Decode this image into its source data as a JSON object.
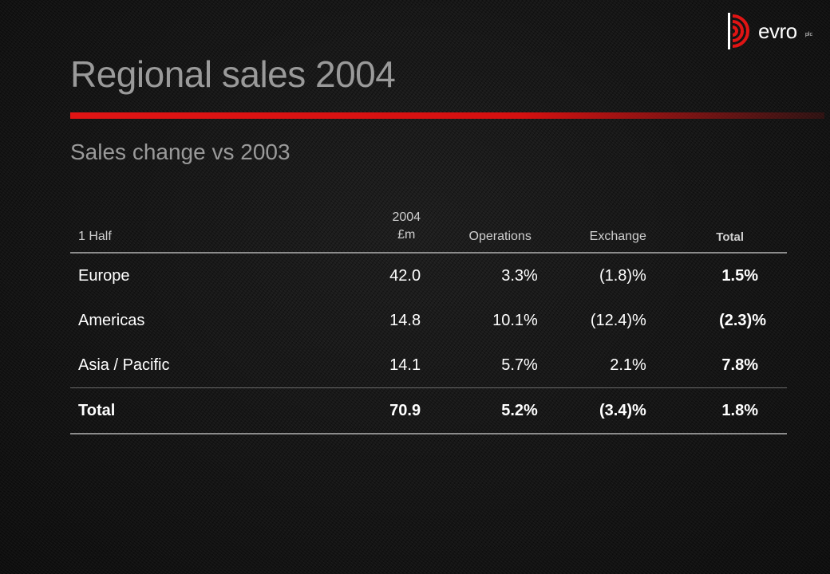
{
  "logo": {
    "wordmark": "evro",
    "suffix": "plc"
  },
  "title": "Regional sales 2004",
  "subtitle": "Sales change vs 2003",
  "table": {
    "headers": {
      "region": "1 Half",
      "year": "2004",
      "unit": "£m",
      "operations": "Operations",
      "exchange": "Exchange",
      "total": "Total"
    },
    "rows": [
      {
        "region": "Europe",
        "sales": "42.0",
        "operations": "3.3%",
        "exchange": "(1.8)%",
        "total": "1.5%"
      },
      {
        "region": "Americas",
        "sales": "14.8",
        "operations": "10.1%",
        "exchange": "(12.4)%",
        "total": "(2.3)%"
      },
      {
        "region": "Asia / Pacific",
        "sales": "14.1",
        "operations": "5.7%",
        "exchange": "2.1%",
        "total": "7.8%"
      }
    ],
    "total_row": {
      "region": "Total",
      "sales": "70.9",
      "operations": "5.2%",
      "exchange": "(3.4)%",
      "total": "1.8%"
    }
  },
  "colors": {
    "accent": "#e01414",
    "title": "#9a9a9a",
    "background": "#141414"
  }
}
